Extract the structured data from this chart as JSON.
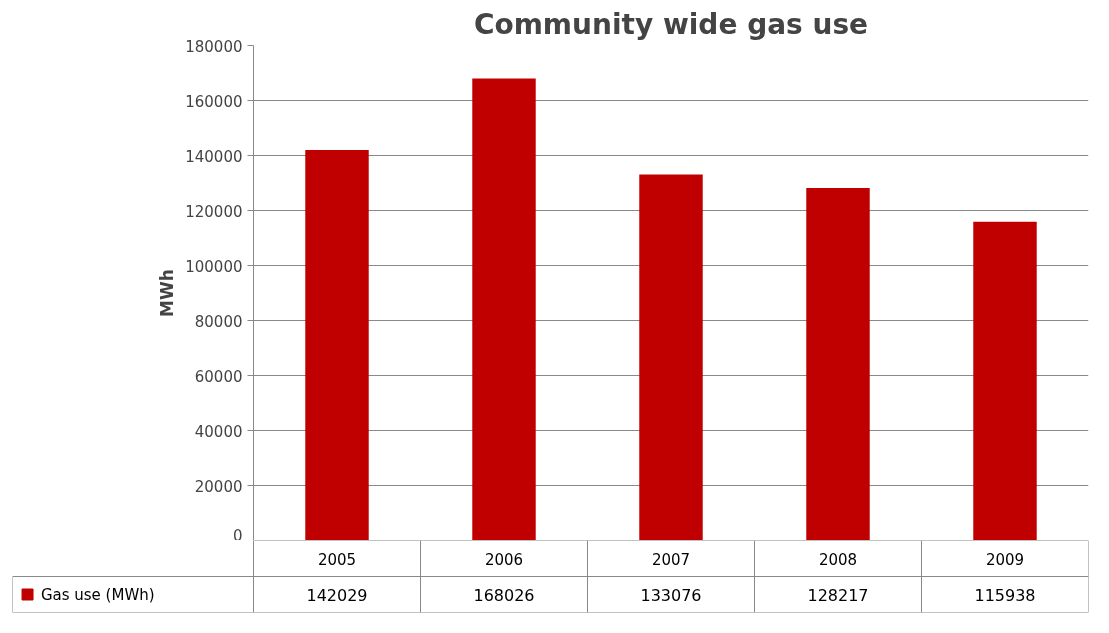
{
  "chart_data": {
    "type": "bar",
    "title": "Community wide gas use",
    "ylabel": "MWh",
    "categories": [
      "2005",
      "2006",
      "2007",
      "2008",
      "2009"
    ],
    "series": [
      {
        "name": "Gas use (MWh)",
        "color": "#c00000",
        "values": [
          142029,
          168026,
          133076,
          128217,
          115938
        ]
      }
    ],
    "ylim": [
      0,
      180000
    ],
    "yticks": [
      0,
      20000,
      40000,
      60000,
      80000,
      100000,
      120000,
      140000,
      160000,
      180000
    ],
    "grid": "y",
    "legend": "bottom",
    "data_labels": true
  }
}
